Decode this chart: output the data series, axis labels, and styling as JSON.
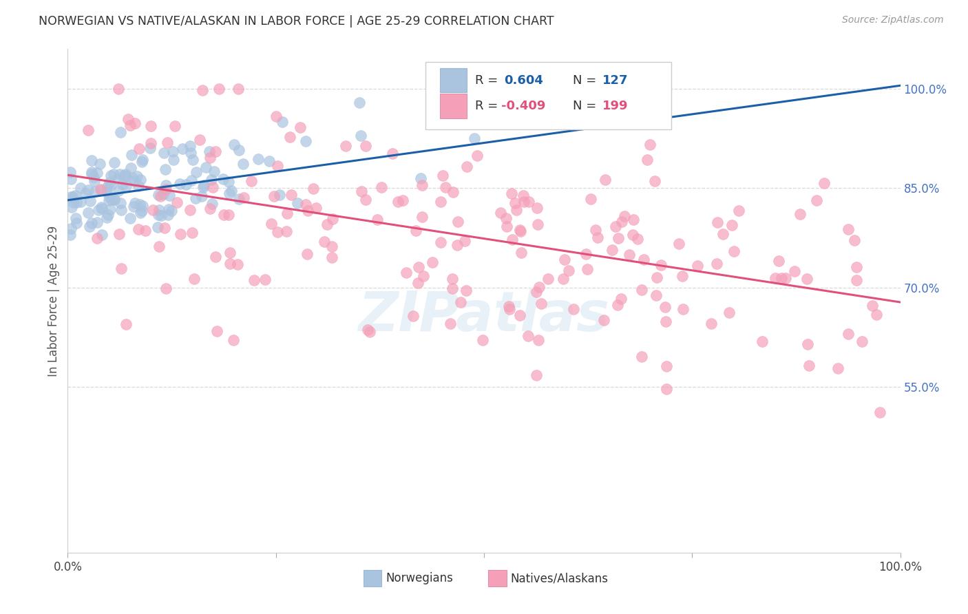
{
  "title": "NORWEGIAN VS NATIVE/ALASKAN IN LABOR FORCE | AGE 25-29 CORRELATION CHART",
  "source": "Source: ZipAtlas.com",
  "ylabel": "In Labor Force | Age 25-29",
  "ytick_labels": [
    "100.0%",
    "85.0%",
    "70.0%",
    "55.0%"
  ],
  "ytick_values": [
    1.0,
    0.85,
    0.7,
    0.55
  ],
  "R_norwegian": 0.604,
  "N_norwegian": 127,
  "R_native": -0.409,
  "N_native": 199,
  "legend_labels": [
    "Norwegians",
    "Natives/Alaskans"
  ],
  "color_norwegian": "#aac4e0",
  "color_native": "#f5a0b8",
  "line_color_norwegian": "#1a5fa8",
  "line_color_native": "#e0507a",
  "watermark": "ZIPatlas",
  "background_color": "#ffffff",
  "grid_color": "#d0d0d0",
  "title_color": "#333333",
  "right_tick_color": "#4472c4",
  "ylim_low": 0.3,
  "ylim_high": 1.06,
  "xlim_low": 0.0,
  "xlim_high": 1.0,
  "norw_line_x0": 0.0,
  "norw_line_x1": 1.0,
  "norw_line_y0": 0.832,
  "norw_line_y1": 1.005,
  "native_line_x0": 0.0,
  "native_line_x1": 1.0,
  "native_line_y0": 0.87,
  "native_line_y1": 0.678
}
